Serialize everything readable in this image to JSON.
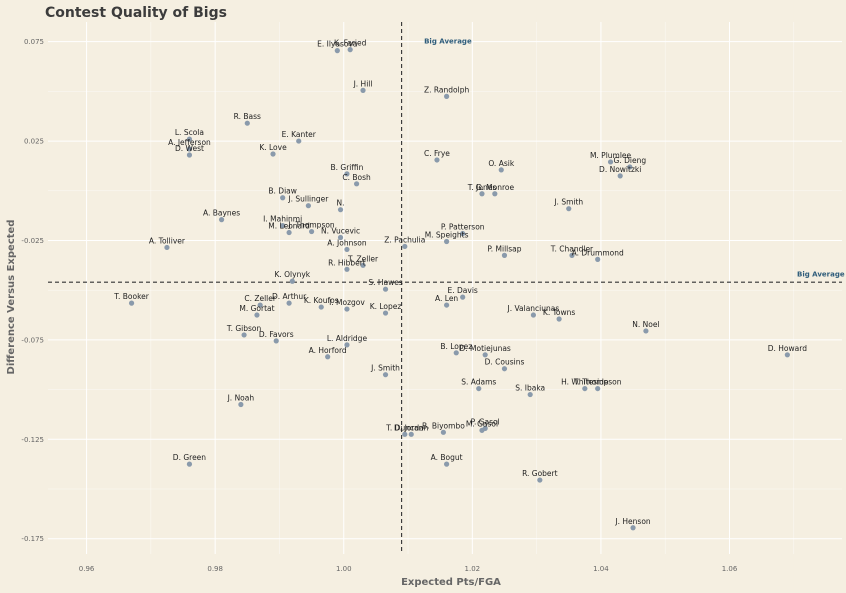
{
  "chart_data": {
    "type": "scatter",
    "title": "Contest Quality of Bigs",
    "xlabel": "Expected Pts/FGA",
    "ylabel": "Difference Versus Expected",
    "xlim": [
      0.954,
      1.0775
    ],
    "ylim": [
      -0.1827,
      0.0849
    ],
    "xticks": [
      0.96,
      0.98,
      1.0,
      1.02,
      1.04,
      1.06
    ],
    "xtick_labels": [
      "0.96",
      "0.98",
      "1.00",
      "1.02",
      "1.04",
      "1.06"
    ],
    "yticks": [
      0.075,
      0.025,
      -0.025,
      -0.075,
      -0.125,
      -0.175
    ],
    "ytick_labels": [
      "0.075",
      "0.025",
      "-0.025",
      "-0.075",
      "-0.125",
      "-0.175"
    ],
    "grid": true,
    "ref_lines": {
      "x": 1.009,
      "y": -0.046
    },
    "annotations": [
      {
        "text": "Big Average",
        "x": 1.0125,
        "y": 0.075
      },
      {
        "text": "Big Average",
        "x": 1.0705,
        "y": -0.042
      }
    ],
    "colors": {
      "background": "#f5efe1",
      "grid": "#ffffff",
      "point": "#8a9aab",
      "annotation": "#2e5c7a",
      "ref_line": "#333333"
    },
    "points": [
      {
        "name": "E. Ilyasova",
        "x": 0.999,
        "y": 0.0705
      },
      {
        "name": "K. Faried",
        "x": 1.001,
        "y": 0.071
      },
      {
        "name": "J. Hill",
        "x": 1.003,
        "y": 0.0505
      },
      {
        "name": "Z. Randolph",
        "x": 1.016,
        "y": 0.0475
      },
      {
        "name": "R. Bass",
        "x": 0.985,
        "y": 0.034
      },
      {
        "name": "L. Scola",
        "x": 0.976,
        "y": 0.026
      },
      {
        "name": "E. Kanter",
        "x": 0.993,
        "y": 0.025
      },
      {
        "name": "A. Jefferson",
        "x": 0.976,
        "y": 0.021
      },
      {
        "name": "D. West",
        "x": 0.976,
        "y": 0.018
      },
      {
        "name": "K. Love",
        "x": 0.989,
        "y": 0.0185
      },
      {
        "name": "C. Frye",
        "x": 1.0145,
        "y": 0.0155
      },
      {
        "name": "O. Asik",
        "x": 1.0245,
        "y": 0.0105
      },
      {
        "name": "M. Plumlee",
        "x": 1.0415,
        "y": 0.0145
      },
      {
        "name": "G. Dieng",
        "x": 1.0445,
        "y": 0.012
      },
      {
        "name": "D. Nowitzki",
        "x": 1.043,
        "y": 0.0075
      },
      {
        "name": "B. Griffin",
        "x": 1.0005,
        "y": 0.0085
      },
      {
        "name": "C. Bosh",
        "x": 1.002,
        "y": 0.0035
      },
      {
        "name": "T. Jones",
        "x": 1.0215,
        "y": -0.0015
      },
      {
        "name": "G. Monroe",
        "x": 1.0235,
        "y": -0.0015
      },
      {
        "name": "B. Diaw",
        "x": 0.9905,
        "y": -0.0035
      },
      {
        "name": "J. Sullinger",
        "x": 0.9945,
        "y": -0.0075
      },
      {
        "name": "N.",
        "x": 0.9995,
        "y": -0.0095
      },
      {
        "name": "J. Smith",
        "x": 1.035,
        "y": -0.009
      },
      {
        "name": "A. Baynes",
        "x": 0.981,
        "y": -0.0145
      },
      {
        "name": "I. Mahinmi",
        "x": 0.9905,
        "y": -0.0175
      },
      {
        "name": "M. Leonard",
        "x": 0.9915,
        "y": -0.021
      },
      {
        "name": "J. Thompson",
        "x": 0.995,
        "y": -0.0205
      },
      {
        "name": "N. Vucevic",
        "x": 0.9995,
        "y": -0.0235
      },
      {
        "name": "P. Patterson",
        "x": 1.0185,
        "y": -0.0215
      },
      {
        "name": "M. Speights",
        "x": 1.016,
        "y": -0.0255
      },
      {
        "name": "A. Tolliver",
        "x": 0.9725,
        "y": -0.0285
      },
      {
        "name": "A. Johnson",
        "x": 1.0005,
        "y": -0.0295
      },
      {
        "name": "Z. Pachulia",
        "x": 1.0095,
        "y": -0.028
      },
      {
        "name": "P. Millsap",
        "x": 1.025,
        "y": -0.0325
      },
      {
        "name": "T. Chandler",
        "x": 1.0355,
        "y": -0.0325
      },
      {
        "name": "A. Drummond",
        "x": 1.0395,
        "y": -0.0345
      },
      {
        "name": "T. Zeller",
        "x": 1.003,
        "y": -0.0375
      },
      {
        "name": "R. Hibbert",
        "x": 1.0005,
        "y": -0.0395
      },
      {
        "name": "K. Olynyk",
        "x": 0.992,
        "y": -0.0455
      },
      {
        "name": "S. Hawes",
        "x": 1.0065,
        "y": -0.0495
      },
      {
        "name": "E. Davis",
        "x": 1.0185,
        "y": -0.0535
      },
      {
        "name": "T. Booker",
        "x": 0.967,
        "y": -0.0565
      },
      {
        "name": "C. Zeller",
        "x": 0.987,
        "y": -0.0575
      },
      {
        "name": "D. Arthur",
        "x": 0.9915,
        "y": -0.0565
      },
      {
        "name": "K. Koufos",
        "x": 0.9965,
        "y": -0.0585
      },
      {
        "name": "I. Mozgov",
        "x": 1.0005,
        "y": -0.0595
      },
      {
        "name": "K. Lopez",
        "x": 1.0065,
        "y": -0.0615
      },
      {
        "name": "A. Len",
        "x": 1.016,
        "y": -0.0575
      },
      {
        "name": "J. Valanciunas",
        "x": 1.0295,
        "y": -0.0625
      },
      {
        "name": "K. Towns",
        "x": 1.0335,
        "y": -0.0645
      },
      {
        "name": "M. Gortat",
        "x": 0.9865,
        "y": -0.0625
      },
      {
        "name": "N. Noel",
        "x": 1.047,
        "y": -0.0705
      },
      {
        "name": "T. Gibson",
        "x": 0.9845,
        "y": -0.0725
      },
      {
        "name": "D. Favors",
        "x": 0.9895,
        "y": -0.0755
      },
      {
        "name": "L. Aldridge",
        "x": 1.0005,
        "y": -0.0775
      },
      {
        "name": "B. Lopez",
        "x": 1.0175,
        "y": -0.0815
      },
      {
        "name": "D. Motiejunas",
        "x": 1.022,
        "y": -0.0825
      },
      {
        "name": "A. Horford",
        "x": 0.9975,
        "y": -0.0835
      },
      {
        "name": "D. Howard",
        "x": 1.069,
        "y": -0.0825
      },
      {
        "name": "D. Cousins",
        "x": 1.025,
        "y": -0.0895
      },
      {
        "name": "J. Smith",
        "x": 1.0065,
        "y": -0.0925
      },
      {
        "name": "S. Adams",
        "x": 1.021,
        "y": -0.0995
      },
      {
        "name": "H. Whiteside",
        "x": 1.0375,
        "y": -0.0995
      },
      {
        "name": "T. Thompson",
        "x": 1.0395,
        "y": -0.0995
      },
      {
        "name": "S. Ibaka",
        "x": 1.029,
        "y": -0.1025
      },
      {
        "name": "J. Noah",
        "x": 0.984,
        "y": -0.1075
      },
      {
        "name": "T. Duncan",
        "x": 1.0095,
        "y": -0.1225
      },
      {
        "name": "D. Jordan",
        "x": 1.0105,
        "y": -0.1225
      },
      {
        "name": "B. Biyombo",
        "x": 1.0155,
        "y": -0.1215
      },
      {
        "name": "P. Gasol",
        "x": 1.022,
        "y": -0.1195
      },
      {
        "name": "M. Gasol",
        "x": 1.0215,
        "y": -0.1205
      },
      {
        "name": "D. Green",
        "x": 0.976,
        "y": -0.1375
      },
      {
        "name": "A. Bogut",
        "x": 1.016,
        "y": -0.1375
      },
      {
        "name": "R. Gobert",
        "x": 1.0305,
        "y": -0.1455
      },
      {
        "name": "J. Henson",
        "x": 1.045,
        "y": -0.1695
      }
    ]
  }
}
